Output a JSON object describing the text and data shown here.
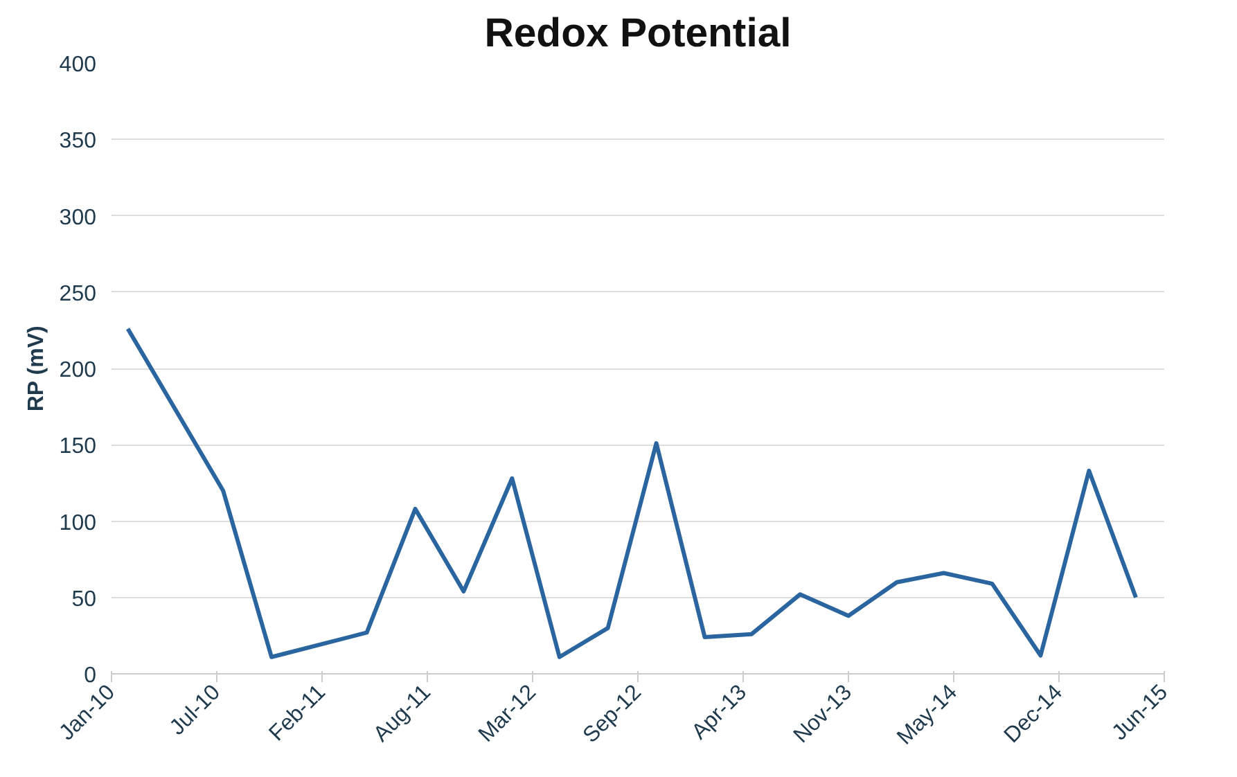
{
  "chart_data": {
    "type": "line",
    "title": "Redox Potential",
    "ylabel": "RP (mV)",
    "x": [
      "2010-02",
      "2010-08",
      "2010-11",
      "2011-05",
      "2011-08",
      "2011-11",
      "2012-02",
      "2012-05",
      "2012-08",
      "2012-11",
      "2013-02",
      "2013-05",
      "2013-08",
      "2013-11",
      "2014-02",
      "2014-05",
      "2014-08",
      "2014-11",
      "2015-02",
      "2015-05"
    ],
    "series": [
      {
        "color": "#2a65a0",
        "values": [
          226,
          120,
          11,
          27,
          108,
          54,
          128,
          11,
          30,
          151,
          24,
          26,
          52,
          38,
          60,
          66,
          59,
          12,
          133,
          50
        ]
      }
    ],
    "xlim": [
      "2010-01-01",
      "2015-06-24"
    ],
    "xticks": [
      {
        "value": "2010-01-01",
        "label": "Jan-10"
      },
      {
        "value": "2010-07-20",
        "label": "Jul-10"
      },
      {
        "value": "2011-02-05",
        "label": "Feb-11"
      },
      {
        "value": "2011-08-24",
        "label": "Aug-11"
      },
      {
        "value": "2012-03-11",
        "label": "Mar-12"
      },
      {
        "value": "2012-09-27",
        "label": "Sep-12"
      },
      {
        "value": "2013-04-15",
        "label": "Apr-13"
      },
      {
        "value": "2013-11-01",
        "label": "Nov-13"
      },
      {
        "value": "2014-05-20",
        "label": "May-14"
      },
      {
        "value": "2014-12-06",
        "label": "Dec-14"
      },
      {
        "value": "2015-06-24",
        "label": "Jun-15"
      }
    ],
    "ylim": [
      0,
      400
    ],
    "yticks": [
      0,
      50,
      100,
      150,
      200,
      250,
      300,
      350,
      400
    ],
    "grid": "y",
    "marker": "none",
    "line_style": "solid"
  }
}
